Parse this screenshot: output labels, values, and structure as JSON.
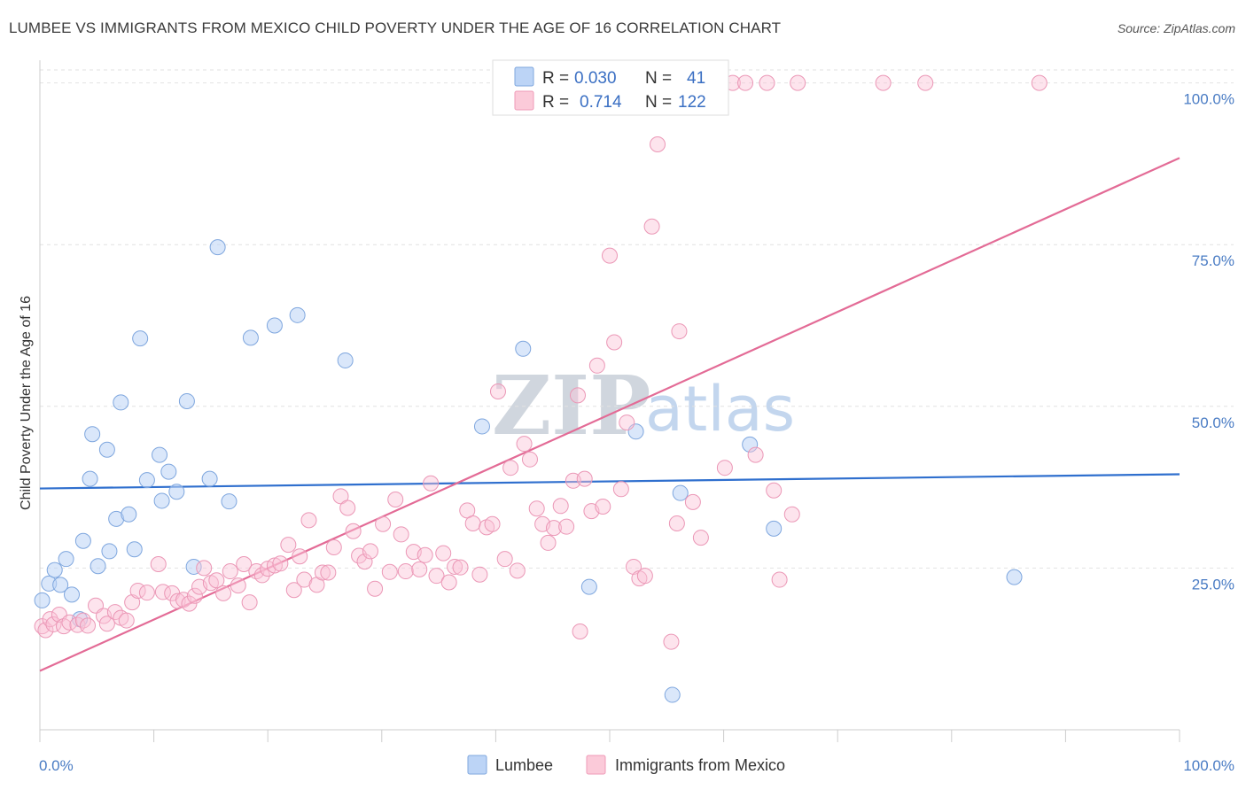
{
  "title": "LUMBEE VS IMMIGRANTS FROM MEXICO CHILD POVERTY UNDER THE AGE OF 16 CORRELATION CHART",
  "source": "Source: ZipAtlas.com",
  "watermark": {
    "zip": "ZIP",
    "atlas": "atlas"
  },
  "chart_data": {
    "type": "scatter",
    "title": "LUMBEE VS IMMIGRANTS FROM MEXICO CHILD POVERTY UNDER THE AGE OF 16 CORRELATION CHART",
    "xlabel": "",
    "ylabel": "Child Poverty Under the Age of 16",
    "xlim": [
      0,
      100
    ],
    "ylim": [
      0,
      102
    ],
    "x_tick_labels": [
      "0.0%",
      "100.0%"
    ],
    "y_ticks": [
      25,
      50,
      75,
      100
    ],
    "y_tick_labels": [
      "25.0%",
      "50.0%",
      "75.0%",
      "100.0%"
    ],
    "grid": true,
    "legend_stats": [
      {
        "r_label": "R =",
        "r": "0.030",
        "n_label": "N =",
        "n": "41"
      },
      {
        "r_label": "R =",
        "r": "0.714",
        "n_label": "N =",
        "n": "122"
      }
    ],
    "series": [
      {
        "name": "Lumbee",
        "color": "#8fb4e8",
        "line_color": "#2f6fce",
        "trend": {
          "x": [
            0,
            100
          ],
          "y": [
            37.3,
            39.5
          ]
        },
        "points": [
          [
            0.2,
            20.0
          ],
          [
            0.8,
            22.6
          ],
          [
            1.3,
            24.7
          ],
          [
            1.8,
            22.4
          ],
          [
            2.3,
            26.4
          ],
          [
            2.8,
            20.9
          ],
          [
            3.5,
            17.1
          ],
          [
            3.8,
            29.2
          ],
          [
            4.4,
            38.8
          ],
          [
            4.6,
            45.7
          ],
          [
            5.1,
            25.3
          ],
          [
            5.9,
            43.3
          ],
          [
            6.1,
            27.6
          ],
          [
            6.7,
            32.6
          ],
          [
            7.1,
            50.6
          ],
          [
            7.8,
            33.3
          ],
          [
            8.3,
            27.9
          ],
          [
            8.8,
            60.5
          ],
          [
            9.4,
            38.6
          ],
          [
            10.5,
            42.5
          ],
          [
            10.7,
            35.4
          ],
          [
            11.3,
            39.9
          ],
          [
            12.0,
            36.8
          ],
          [
            12.9,
            50.8
          ],
          [
            13.5,
            25.2
          ],
          [
            14.9,
            38.8
          ],
          [
            15.6,
            74.6
          ],
          [
            16.6,
            35.3
          ],
          [
            18.5,
            60.6
          ],
          [
            20.6,
            62.5
          ],
          [
            22.6,
            64.1
          ],
          [
            26.8,
            57.1
          ],
          [
            38.8,
            46.9
          ],
          [
            42.4,
            58.9
          ],
          [
            48.2,
            22.1
          ],
          [
            52.3,
            46.1
          ],
          [
            55.5,
            5.4
          ],
          [
            56.2,
            36.6
          ],
          [
            62.3,
            44.1
          ],
          [
            64.4,
            31.1
          ],
          [
            85.5,
            23.6
          ]
        ]
      },
      {
        "name": "Immigrants from Mexico",
        "color": "#f4a7c0",
        "line_color": "#e36b96",
        "trend": {
          "x": [
            0,
            100
          ],
          "y": [
            9.1,
            88.4
          ]
        },
        "points": [
          [
            0.2,
            16.0
          ],
          [
            0.5,
            15.4
          ],
          [
            0.9,
            17.1
          ],
          [
            1.2,
            16.3
          ],
          [
            1.7,
            17.8
          ],
          [
            2.1,
            16.0
          ],
          [
            2.6,
            16.6
          ],
          [
            3.3,
            16.2
          ],
          [
            3.8,
            16.9
          ],
          [
            4.2,
            16.1
          ],
          [
            4.9,
            19.2
          ],
          [
            5.6,
            17.6
          ],
          [
            5.9,
            16.4
          ],
          [
            6.6,
            18.2
          ],
          [
            7.1,
            17.3
          ],
          [
            7.6,
            16.9
          ],
          [
            8.1,
            19.7
          ],
          [
            8.6,
            21.5
          ],
          [
            9.4,
            21.2
          ],
          [
            10.4,
            25.6
          ],
          [
            10.8,
            21.3
          ],
          [
            11.6,
            21.1
          ],
          [
            12.1,
            19.9
          ],
          [
            12.6,
            20.1
          ],
          [
            13.1,
            19.5
          ],
          [
            13.6,
            20.7
          ],
          [
            14.0,
            22.1
          ],
          [
            14.4,
            25.0
          ],
          [
            15.0,
            22.7
          ],
          [
            15.5,
            23.1
          ],
          [
            16.1,
            21.1
          ],
          [
            16.7,
            24.5
          ],
          [
            17.4,
            22.3
          ],
          [
            17.9,
            25.6
          ],
          [
            18.4,
            19.7
          ],
          [
            19.0,
            24.5
          ],
          [
            19.5,
            23.9
          ],
          [
            20.0,
            24.9
          ],
          [
            20.6,
            25.4
          ],
          [
            21.1,
            25.7
          ],
          [
            21.8,
            28.6
          ],
          [
            22.3,
            21.6
          ],
          [
            22.8,
            26.8
          ],
          [
            23.2,
            23.2
          ],
          [
            23.6,
            32.4
          ],
          [
            24.3,
            22.4
          ],
          [
            24.8,
            24.3
          ],
          [
            25.3,
            24.3
          ],
          [
            25.8,
            28.2
          ],
          [
            26.4,
            36.1
          ],
          [
            27.0,
            34.3
          ],
          [
            27.5,
            30.7
          ],
          [
            28.0,
            26.9
          ],
          [
            28.5,
            26.0
          ],
          [
            29.0,
            27.6
          ],
          [
            29.4,
            21.8
          ],
          [
            30.1,
            31.8
          ],
          [
            30.7,
            24.4
          ],
          [
            31.2,
            35.6
          ],
          [
            31.7,
            30.2
          ],
          [
            32.1,
            24.5
          ],
          [
            32.8,
            27.5
          ],
          [
            33.3,
            24.8
          ],
          [
            33.8,
            27.0
          ],
          [
            34.3,
            38.1
          ],
          [
            34.8,
            23.8
          ],
          [
            35.4,
            27.3
          ],
          [
            35.9,
            22.8
          ],
          [
            36.4,
            25.2
          ],
          [
            36.9,
            25.1
          ],
          [
            37.5,
            33.9
          ],
          [
            38.0,
            31.9
          ],
          [
            38.6,
            24.0
          ],
          [
            39.2,
            31.3
          ],
          [
            39.7,
            31.8
          ],
          [
            40.2,
            52.3
          ],
          [
            40.8,
            26.4
          ],
          [
            41.3,
            40.5
          ],
          [
            41.9,
            24.6
          ],
          [
            42.5,
            44.2
          ],
          [
            43.0,
            41.8
          ],
          [
            43.6,
            34.2
          ],
          [
            44.1,
            31.8
          ],
          [
            44.6,
            28.9
          ],
          [
            45.1,
            31.2
          ],
          [
            45.7,
            34.6
          ],
          [
            46.2,
            31.4
          ],
          [
            46.8,
            38.5
          ],
          [
            47.2,
            51.7
          ],
          [
            47.8,
            38.8
          ],
          [
            48.4,
            33.8
          ],
          [
            48.9,
            56.3
          ],
          [
            49.4,
            34.5
          ],
          [
            50.0,
            73.3
          ],
          [
            50.4,
            59.9
          ],
          [
            51.0,
            37.2
          ],
          [
            51.5,
            47.5
          ],
          [
            52.1,
            25.2
          ],
          [
            52.6,
            23.4
          ],
          [
            53.1,
            23.8
          ],
          [
            53.7,
            77.8
          ],
          [
            54.2,
            90.5
          ],
          [
            55.4,
            13.6
          ],
          [
            55.9,
            31.9
          ],
          [
            56.1,
            61.6
          ],
          [
            57.3,
            35.2
          ],
          [
            58.0,
            29.7
          ],
          [
            60.1,
            40.5
          ],
          [
            60.8,
            100
          ],
          [
            61.9,
            100
          ],
          [
            62.8,
            42.5
          ],
          [
            63.8,
            100
          ],
          [
            64.4,
            37.0
          ],
          [
            64.9,
            23.2
          ],
          [
            66.0,
            33.3
          ],
          [
            66.5,
            100
          ],
          [
            74.0,
            100
          ],
          [
            77.7,
            100
          ],
          [
            87.7,
            100
          ],
          [
            47.4,
            15.2
          ]
        ]
      }
    ]
  }
}
